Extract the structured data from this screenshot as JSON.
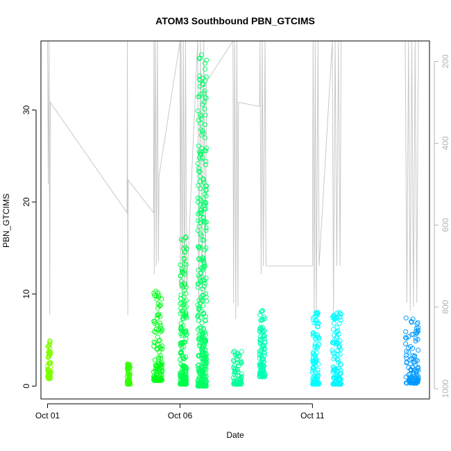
{
  "chart_data": {
    "type": "scatter",
    "title": "ATOM3 Southbound PBN_GTCIMS",
    "xlabel": "Date",
    "ylabel": "PBN_GTCIMS",
    "x_ticks": [
      {
        "date": "2023-10-01",
        "label": "Oct 01"
      },
      {
        "date": "2023-10-06",
        "label": "Oct 06"
      },
      {
        "date": "2023-10-11",
        "label": "Oct 11"
      }
    ],
    "xlim": [
      "2023-09-30T18:00",
      "2023-10-15T10:00"
    ],
    "y_ticks": [
      0,
      10,
      20,
      30
    ],
    "ylim": [
      -1.4,
      37.5
    ],
    "secondary_axis": {
      "side": "right",
      "reversed": true,
      "ticks": [
        200,
        400,
        600,
        800,
        1000
      ],
      "ylim": [
        1025,
        150
      ],
      "color": "#b4b4b4"
    },
    "grid": false,
    "legend": "none",
    "point_series": [
      {
        "start": "2023-10-01T00:00",
        "end": "2023-10-01T03:00",
        "low": 0.8,
        "high": 4.9,
        "color": "#80ff00"
      },
      {
        "start": "2023-10-04T00:00",
        "end": "2023-10-04T03:00",
        "low": 0.2,
        "high": 2.4,
        "color": "#33ff00"
      },
      {
        "start": "2023-10-05T00:00",
        "end": "2023-10-05T08:00",
        "low": 0.6,
        "high": 10.3,
        "color": "#00ff19"
      },
      {
        "start": "2023-10-06T00:00",
        "end": "2023-10-06T06:00",
        "low": 0.2,
        "high": 16.2,
        "color": "#00ff4d"
      },
      {
        "start": "2023-10-06T16:00",
        "end": "2023-10-07T00:00",
        "low": 0.0,
        "high": 36.0,
        "color": "#00ff66"
      },
      {
        "start": "2023-10-08T00:00",
        "end": "2023-10-08T08:00",
        "low": 0.2,
        "high": 3.8,
        "color": "#00ff99"
      },
      {
        "start": "2023-10-09T00:00",
        "end": "2023-10-09T05:00",
        "low": 1.0,
        "high": 8.2,
        "color": "#00ffb3"
      },
      {
        "start": "2023-10-11T00:00",
        "end": "2023-10-11T06:00",
        "low": 0.2,
        "high": 8.0,
        "color": "#00ffff"
      },
      {
        "start": "2023-10-11T18:00",
        "end": "2023-10-12T02:00",
        "low": 0.2,
        "high": 8.0,
        "color": "#00f7ff"
      },
      {
        "start": "2023-10-14T12:00",
        "end": "2023-10-15T00:00",
        "low": 0.3,
        "high": 7.4,
        "color": "#0099ff"
      }
    ],
    "line_series": {
      "axis": "secondary",
      "color": "#c8c8c8",
      "points": [
        [
          "2023-10-01T00:00",
          150
        ],
        [
          "2023-10-01T00:40",
          500
        ],
        [
          "2023-10-01T01:20",
          150
        ],
        [
          "2023-10-01T02:00",
          820
        ],
        [
          "2023-10-01T02:30",
          300
        ],
        [
          "2023-10-04T00:00",
          570
        ],
        [
          "2023-10-04T00:20",
          150
        ],
        [
          "2023-10-04T00:40",
          820
        ],
        [
          "2023-10-04T01:00",
          490
        ],
        [
          "2023-10-05T00:00",
          570
        ],
        [
          "2023-10-05T00:20",
          150
        ],
        [
          "2023-10-05T00:40",
          720
        ],
        [
          "2023-10-05T01:30",
          150
        ],
        [
          "2023-10-05T02:30",
          700
        ],
        [
          "2023-10-05T03:30",
          150
        ],
        [
          "2023-10-05T04:30",
          690
        ],
        [
          "2023-10-05T05:00",
          480
        ],
        [
          "2023-10-06T00:00",
          150
        ],
        [
          "2023-10-06T00:20",
          760
        ],
        [
          "2023-10-06T01:00",
          150
        ],
        [
          "2023-10-06T02:00",
          780
        ],
        [
          "2023-10-06T03:00",
          150
        ],
        [
          "2023-10-06T04:00",
          800
        ],
        [
          "2023-10-06T05:00",
          150
        ],
        [
          "2023-10-06T06:00",
          760
        ],
        [
          "2023-10-06T16:00",
          150
        ],
        [
          "2023-10-06T17:00",
          820
        ],
        [
          "2023-10-06T18:30",
          150
        ],
        [
          "2023-10-06T20:00",
          800
        ],
        [
          "2023-10-06T21:30",
          150
        ],
        [
          "2023-10-06T23:00",
          780
        ],
        [
          "2023-10-07T00:00",
          250
        ],
        [
          "2023-10-08T00:00",
          150
        ],
        [
          "2023-10-08T00:30",
          790
        ],
        [
          "2023-10-08T01:30",
          150
        ],
        [
          "2023-10-08T02:30",
          830
        ],
        [
          "2023-10-08T03:30",
          150
        ],
        [
          "2023-10-08T04:30",
          800
        ],
        [
          "2023-10-08T05:00",
          300
        ],
        [
          "2023-10-09T00:00",
          310
        ],
        [
          "2023-10-09T00:30",
          150
        ],
        [
          "2023-10-09T01:30",
          720
        ],
        [
          "2023-10-09T02:30",
          150
        ],
        [
          "2023-10-09T03:30",
          700
        ],
        [
          "2023-10-09T05:00",
          150
        ],
        [
          "2023-10-09T06:00",
          700
        ],
        [
          "2023-10-11T00:00",
          700
        ],
        [
          "2023-10-11T00:30",
          150
        ],
        [
          "2023-10-11T01:30",
          830
        ],
        [
          "2023-10-11T02:30",
          150
        ],
        [
          "2023-10-11T03:30",
          810
        ],
        [
          "2023-10-11T05:00",
          150
        ],
        [
          "2023-10-11T06:00",
          700
        ],
        [
          "2023-10-11T18:00",
          150
        ],
        [
          "2023-10-11T19:00",
          820
        ],
        [
          "2023-10-11T20:30",
          150
        ],
        [
          "2023-10-11T22:00",
          700
        ],
        [
          "2023-10-11T23:30",
          150
        ],
        [
          "2023-10-12T01:00",
          700
        ],
        [
          "2023-10-12T02:00",
          150
        ],
        [
          "2023-10-14T12:00",
          150
        ],
        [
          "2023-10-14T13:30",
          790
        ],
        [
          "2023-10-14T15:00",
          150
        ],
        [
          "2023-10-14T16:30",
          810
        ],
        [
          "2023-10-14T18:00",
          150
        ],
        [
          "2023-10-14T19:30",
          800
        ],
        [
          "2023-10-14T21:00",
          150
        ],
        [
          "2023-10-14T22:30",
          790
        ],
        [
          "2023-10-15T00:00",
          150
        ]
      ]
    }
  }
}
